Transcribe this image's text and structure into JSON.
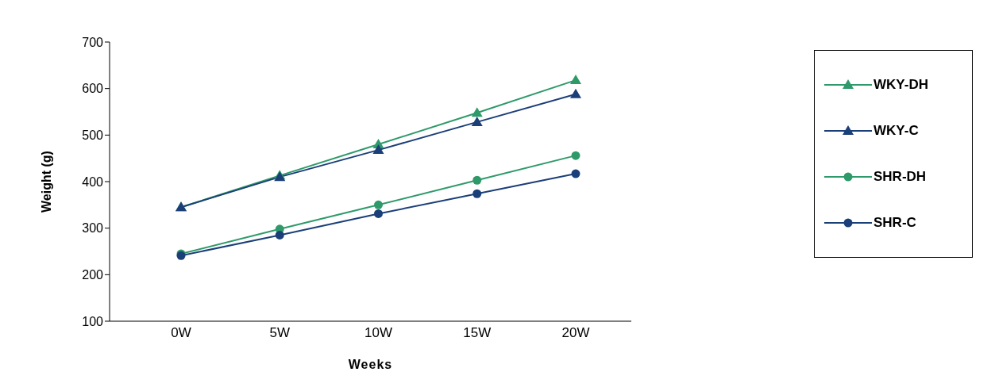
{
  "chart_data": {
    "type": "line",
    "xlabel": "Weeks",
    "ylabel": "Weight (g)",
    "categories": [
      "0W",
      "5W",
      "10W",
      "15W",
      "20W"
    ],
    "series": [
      {
        "name": "WKY-DH",
        "color": "#2e9a6a",
        "marker": "triangle",
        "values": [
          345,
          413,
          480,
          548,
          618
        ]
      },
      {
        "name": "WKY-C",
        "color": "#1b3f78",
        "marker": "triangle",
        "values": [
          345,
          410,
          468,
          528,
          588
        ]
      },
      {
        "name": "SHR-DH",
        "color": "#2e9a6a",
        "marker": "circle",
        "values": [
          245,
          298,
          350,
          403,
          456
        ]
      },
      {
        "name": "SHR-C",
        "color": "#1b3f78",
        "marker": "circle",
        "values": [
          241,
          285,
          331,
          374,
          417
        ]
      }
    ],
    "ylim": [
      100,
      700
    ],
    "yticks": [
      100,
      200,
      300,
      400,
      500,
      600,
      700
    ],
    "grid": false,
    "legend": "right"
  }
}
